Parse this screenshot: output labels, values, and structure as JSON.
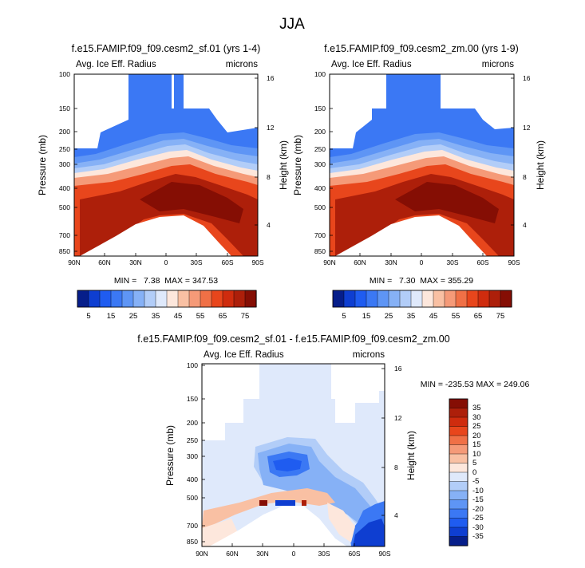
{
  "figure_title": "JJA",
  "chart_data": [
    {
      "type": "heatmap",
      "title": "f.e15.FAMIP.f09_f09.cesm2_sf.01 (yrs 1-4)",
      "left_label": "Avg. Ice Eff. Radius",
      "right_label": "microns",
      "ylabel": "Pressure (mb)",
      "ylabel_right": "Height (km)",
      "x_ticks": [
        "90N",
        "60N",
        "30N",
        "0",
        "30S",
        "60S",
        "90S"
      ],
      "y_ticks": [
        "100",
        "150",
        "200",
        "250",
        "300",
        "400",
        "500",
        "700",
        "850"
      ],
      "y_ticks_right": [
        "16",
        "12",
        "8",
        "4"
      ],
      "stats": "MIN =   7.38  MAX = 347.53",
      "xlim": [
        90,
        -90
      ],
      "ylim": [
        100,
        925
      ],
      "field": "ice effective radius, max near 300-600 mb in tropics"
    },
    {
      "type": "heatmap",
      "title": "f.e15.FAMIP.f09_f09.cesm2_zm.00 (yrs 1-9)",
      "left_label": "Avg. Ice Eff. Radius",
      "right_label": "microns",
      "ylabel": "Pressure (mb)",
      "ylabel_right": "Height (km)",
      "x_ticks": [
        "90N",
        "60N",
        "30N",
        "0",
        "30S",
        "60S",
        "90S"
      ],
      "y_ticks": [
        "100",
        "150",
        "200",
        "250",
        "300",
        "400",
        "500",
        "700",
        "850"
      ],
      "y_ticks_right": [
        "16",
        "12",
        "8",
        "4"
      ],
      "stats": "MIN =   7.30  MAX = 355.29",
      "xlim": [
        90,
        -90
      ],
      "ylim": [
        100,
        925
      ]
    },
    {
      "type": "heatmap",
      "title": "f.e15.FAMIP.f09_f09.cesm2_sf.01 - f.e15.FAMIP.f09_f09.cesm2_zm.00",
      "left_label": "Avg. Ice Eff. Radius",
      "right_label": "microns",
      "ylabel": "Pressure (mb)",
      "ylabel_right": "Height (km)",
      "x_ticks": [
        "90N",
        "60N",
        "30N",
        "0",
        "30S",
        "60S",
        "90S"
      ],
      "y_ticks": [
        "100",
        "150",
        "200",
        "250",
        "300",
        "400",
        "500",
        "700",
        "850"
      ],
      "y_ticks_right": [
        "16",
        "12",
        "8",
        "4"
      ],
      "stats": "MIN = -235.53  MAX = 249.06",
      "xlim": [
        90,
        -90
      ],
      "ylim": [
        100,
        925
      ]
    }
  ],
  "colorbar_abs": {
    "labels": [
      "5",
      "15",
      "25",
      "35",
      "45",
      "55",
      "65",
      "75"
    ],
    "colors": [
      "#061e8a",
      "#0e3ed1",
      "#1f5cf0",
      "#3b78f4",
      "#5e95f5",
      "#86b1f6",
      "#b2cdf8",
      "#dfe9fb",
      "#fde7dc",
      "#f9c0a3",
      "#f59a78",
      "#f07046",
      "#e8461c",
      "#cf2c0e",
      "#ad1f0a",
      "#850e04"
    ]
  },
  "colorbar_diff": {
    "labels": [
      "35",
      "30",
      "25",
      "20",
      "15",
      "10",
      "5",
      "0",
      "-5",
      "-10",
      "-15",
      "-20",
      "-25",
      "-30",
      "-35"
    ],
    "colors": [
      "#850e04",
      "#ad1f0a",
      "#cf2c0e",
      "#e8461c",
      "#f07046",
      "#f59a78",
      "#f9c0a3",
      "#fde7dc",
      "#dfe9fb",
      "#b2cdf8",
      "#86b1f6",
      "#5e95f5",
      "#3b78f4",
      "#1f5cf0",
      "#0e3ed1",
      "#061e8a"
    ]
  }
}
